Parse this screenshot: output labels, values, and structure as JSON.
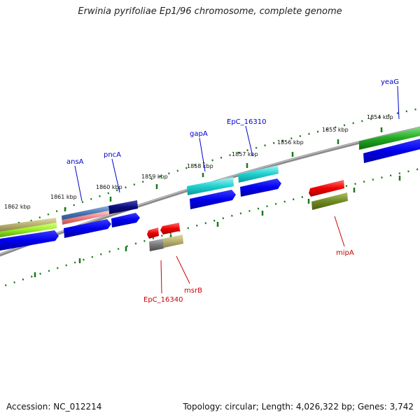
{
  "title": "Erwinia pyrifoliae Ep1/96 chromosome, complete genome",
  "footer": {
    "accession": "Accession: NC_012214",
    "summary": "Topology: circular; Length: 4,026,322 bp; Genes: 3,742"
  },
  "colors": {
    "backbone": "#8a8a8a",
    "tick": "#1a7a1a",
    "forward_label": "#0000cc",
    "reverse_label": "#cc0000"
  },
  "kbp_labels": [
    "1854 kbp",
    "1855 kbp",
    "1856 kbp",
    "1857 kbp",
    "1858 kbp",
    "1859 kbp",
    "1860 kbp",
    "1861 kbp",
    "1862 kbp"
  ],
  "gene_labels": {
    "forward": [
      "yeaG",
      "EpC_16310",
      "gapA",
      "pncA",
      "ansA"
    ],
    "reverse": [
      "mipA",
      "msrB",
      "EpC_16340"
    ]
  }
}
